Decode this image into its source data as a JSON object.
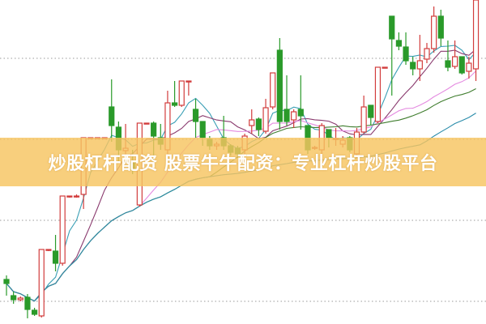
{
  "banner": {
    "text": "炒股杠杆配资 股票牛牛配资：专业杠杆炒股平台"
  },
  "chart_data": {
    "type": "candlestick",
    "title": "",
    "ylim": [
      0,
      400
    ],
    "gridlines": [
      28,
      128,
      228,
      328
    ],
    "grid": true,
    "up_color": "#d23c3c",
    "down_color": "#2a9a2a",
    "candles": [
      [
        55,
        60,
        35,
        50
      ],
      [
        35,
        40,
        25,
        30
      ],
      [
        30,
        34,
        28,
        32
      ],
      [
        33,
        37,
        7,
        18
      ],
      [
        17,
        20,
        10,
        12
      ],
      [
        10,
        92,
        8,
        92
      ],
      [
        92,
        92,
        90,
        92
      ],
      [
        90,
        110,
        65,
        75
      ],
      [
        75,
        158,
        72,
        158
      ],
      [
        158,
        158,
        156,
        158
      ],
      [
        158,
        160,
        156,
        158
      ],
      [
        160,
        230,
        142,
        230
      ],
      [
        230,
        230,
        229,
        230
      ],
      [
        230,
        230,
        229,
        230
      ],
      [
        230,
        230,
        229,
        230
      ],
      [
        268,
        302,
        225,
        245
      ],
      [
        243,
        250,
        200,
        215
      ],
      [
        214,
        247,
        205,
        217
      ],
      [
        200,
        215,
        185,
        190
      ],
      [
        147,
        248,
        145,
        248
      ],
      [
        248,
        248,
        247,
        248
      ],
      [
        248,
        250,
        200,
        232
      ],
      [
        230,
        247,
        215,
        222
      ],
      [
        215,
        288,
        210,
        273
      ],
      [
        273,
        300,
        268,
        270
      ],
      [
        270,
        300,
        268,
        300
      ],
      [
        300,
        300,
        282,
        300
      ],
      [
        265,
        278,
        230,
        250
      ],
      [
        250,
        250,
        220,
        230
      ],
      [
        228,
        232,
        215,
        220
      ],
      [
        220,
        225,
        215,
        222
      ],
      [
        230,
        257,
        215,
        220
      ],
      [
        220,
        222,
        208,
        212
      ],
      [
        217,
        220,
        205,
        210
      ],
      [
        215,
        235,
        210,
        232
      ],
      [
        245,
        265,
        235,
        252
      ],
      [
        253,
        255,
        232,
        240
      ],
      [
        238,
        278,
        235,
        267
      ],
      [
        268,
        310,
        265,
        310
      ],
      [
        338,
        353,
        240,
        250
      ],
      [
        265,
        307,
        245,
        250
      ],
      [
        252,
        265,
        242,
        262
      ],
      [
        265,
        307,
        240,
        257
      ],
      [
        245,
        245,
        210,
        215
      ],
      [
        217,
        220,
        215,
        218
      ],
      [
        215,
        248,
        210,
        245
      ],
      [
        240,
        240,
        218,
        230
      ],
      [
        228,
        242,
        220,
        229
      ],
      [
        222,
        232,
        218,
        227
      ],
      [
        230,
        232,
        212,
        215
      ],
      [
        210,
        242,
        205,
        237
      ],
      [
        237,
        282,
        235,
        268
      ],
      [
        270,
        270,
        245,
        255
      ],
      [
        250,
        317,
        248,
        317
      ],
      [
        317,
        317,
        316,
        317
      ],
      [
        380,
        380,
        282,
        352
      ],
      [
        350,
        360,
        338,
        343
      ],
      [
        342,
        360,
        320,
        325
      ],
      [
        323,
        330,
        307,
        315
      ],
      [
        315,
        357,
        300,
        325
      ],
      [
        327,
        347,
        322,
        340
      ],
      [
        340,
        392,
        335,
        380
      ],
      [
        380,
        388,
        343,
        353
      ],
      [
        325,
        350,
        312,
        317
      ],
      [
        318,
        350,
        315,
        330
      ],
      [
        330,
        330,
        308,
        310
      ],
      [
        312,
        330,
        303,
        322
      ],
      [
        315,
        400,
        300,
        400
      ]
    ],
    "moving_averages": [
      {
        "period": 5,
        "color": "#3a9fb5"
      },
      {
        "period": 10,
        "color": "#8a3a6e"
      },
      {
        "period": 20,
        "color": "#e48ae0"
      },
      {
        "period": 30,
        "color": "#3f7d2e"
      },
      {
        "period": 60,
        "color": "#2a8caa"
      }
    ]
  }
}
